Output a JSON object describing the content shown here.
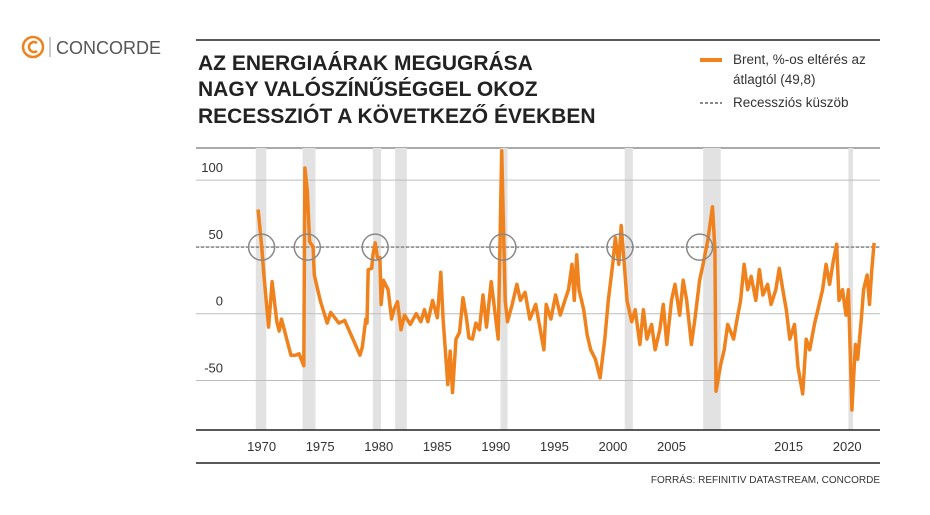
{
  "logo": {
    "text": "CONCORDE"
  },
  "chart_data": {
    "type": "line",
    "title": [
      "AZ ENERGIAÁRAK MEGUGRÁSA",
      "NAGY VALÓSZÍNŰSÉGGEL OKOZ",
      "RECESSZIÓT A KÖVETKEZŐ ÉVEKBEN"
    ],
    "source": "FORRÁS: REFINITIV DATASTREAM, CONCORDE",
    "xlim": [
      1964.4,
      2022.8
    ],
    "xticks": [
      1970,
      1975,
      1980,
      1985,
      1990,
      1995,
      2000,
      2005,
      2015,
      2020
    ],
    "xtick_labels_fix": null,
    "ylim": [
      -87,
      124
    ],
    "yticks": [
      -50,
      0,
      50,
      100
    ],
    "grid": true,
    "threshold": {
      "name": "Recessziós küszöb",
      "value": 49.8,
      "color": "#888888"
    },
    "recessions": [
      [
        1969.5,
        1970.4
      ],
      [
        1973.5,
        1974.6
      ],
      [
        1979.5,
        1980.2
      ],
      [
        1981.4,
        1982.4
      ],
      [
        1990.4,
        1991.0
      ],
      [
        2001.0,
        2001.7
      ],
      [
        2007.7,
        2009.2
      ],
      [
        2020.1,
        2020.5
      ]
    ],
    "recession_color": "#e2e2e2",
    "highlights": [
      1970.0,
      1973.9,
      1979.7,
      1990.6,
      2000.6,
      2007.4
    ],
    "series": [
      {
        "name": "Brent, %-os eltérés az átlagtól (49,8)",
        "color": "#f0821e",
        "x": [
          1969.7,
          1970.0,
          1970.2,
          1970.6,
          1970.9,
          1971.3,
          1971.5,
          1971.7,
          1972.0,
          1972.5,
          1972.9,
          1973.2,
          1973.6,
          1973.7,
          1973.9,
          1974.1,
          1974.4,
          1974.5,
          1975.0,
          1975.6,
          1975.9,
          1976.6,
          1977.1,
          1978.4,
          1978.6,
          1978.9,
          1979.0,
          1979.1,
          1979.4,
          1979.5,
          1979.7,
          1979.9,
          1980.1,
          1980.2,
          1980.4,
          1980.8,
          1981.1,
          1981.3,
          1981.6,
          1981.9,
          1982.2,
          1982.7,
          1983.2,
          1983.6,
          1983.9,
          1984.2,
          1984.6,
          1985.0,
          1985.3,
          1985.5,
          1985.9,
          1986.1,
          1986.3,
          1986.6,
          1986.9,
          1987.2,
          1987.5,
          1987.7,
          1988.0,
          1988.3,
          1988.6,
          1988.9,
          1989.2,
          1989.6,
          1989.8,
          1990.2,
          1990.5,
          1990.8,
          1991.0,
          1991.4,
          1991.8,
          1992.1,
          1992.5,
          1992.9,
          1993.4,
          1993.8,
          1994.1,
          1994.3,
          1994.7,
          1995.1,
          1995.5,
          1995.9,
          1996.2,
          1996.5,
          1996.7,
          1996.9,
          1997.1,
          1997.5,
          1997.8,
          1998.1,
          1998.5,
          1998.9,
          1999.3,
          1999.6,
          2000.0,
          2000.2,
          2000.5,
          2000.7,
          2001.0,
          2001.2,
          2001.6,
          2001.9,
          2002.3,
          2002.6,
          2002.9,
          2003.3,
          2003.6,
          2004.0,
          2004.3,
          2004.6,
          2005.0,
          2005.3,
          2005.7,
          2006.0,
          2006.3,
          2006.7,
          2007.0,
          2007.4,
          2007.7,
          2008.1,
          2008.5,
          2008.7,
          2008.8,
          2009.2,
          2009.5,
          2009.8,
          2010.3,
          2010.6,
          2010.9,
          2011.2,
          2011.5,
          2011.8,
          2012.2,
          2012.5,
          2012.8,
          2013.2,
          2013.5,
          2013.9,
          2014.2,
          2014.5,
          2014.8,
          2015.1,
          2015.5,
          2015.8,
          2016.2,
          2016.5,
          2016.8,
          2017.2,
          2017.5,
          2017.9,
          2018.2,
          2018.5,
          2018.8,
          2019.1,
          2019.3,
          2019.6,
          2019.9,
          2020.1,
          2020.4,
          2020.7,
          2020.9,
          2021.2,
          2021.4,
          2021.7,
          2021.9,
          2022.1,
          2022.3
        ],
        "values": [
          78,
          51,
          29,
          -10,
          24,
          -6,
          -13,
          -4,
          -14,
          -31,
          -31,
          -30,
          -39,
          109,
          92,
          54,
          50,
          29,
          10,
          -7,
          1,
          -7,
          -5,
          -31,
          -25,
          -4,
          -7,
          33,
          34,
          44,
          53,
          42,
          42,
          7,
          25,
          18,
          -4,
          3,
          9,
          -12,
          -1,
          -8,
          0,
          -6,
          3,
          -6,
          10,
          -3,
          31,
          -4,
          -53,
          -28,
          -59,
          -19,
          -14,
          12,
          -4,
          -18,
          -19,
          -7,
          -12,
          14,
          -10,
          24,
          10,
          -19,
          122,
          10,
          -6,
          7,
          22,
          10,
          16,
          -4,
          7,
          -12,
          -27,
          7,
          -4,
          14,
          -1,
          10,
          18,
          37,
          10,
          44,
          18,
          3,
          -16,
          -27,
          -34,
          -48,
          -19,
          10,
          39,
          57,
          37,
          66,
          33,
          10,
          -6,
          3,
          -23,
          3,
          -19,
          -8,
          -27,
          -12,
          7,
          -23,
          10,
          22,
          -1,
          25,
          10,
          -23,
          -4,
          25,
          37,
          55,
          80,
          48,
          -58,
          -38,
          -27,
          -8,
          -19,
          -4,
          10,
          37,
          18,
          28,
          10,
          33,
          14,
          22,
          7,
          18,
          34,
          18,
          3,
          -19,
          -8,
          -40,
          -60,
          -19,
          -27,
          -8,
          3,
          18,
          37,
          22,
          39,
          52,
          10,
          18,
          -1,
          18,
          -72,
          -23,
          -34,
          -4,
          18,
          29,
          7,
          33,
          53
        ]
      }
    ]
  }
}
